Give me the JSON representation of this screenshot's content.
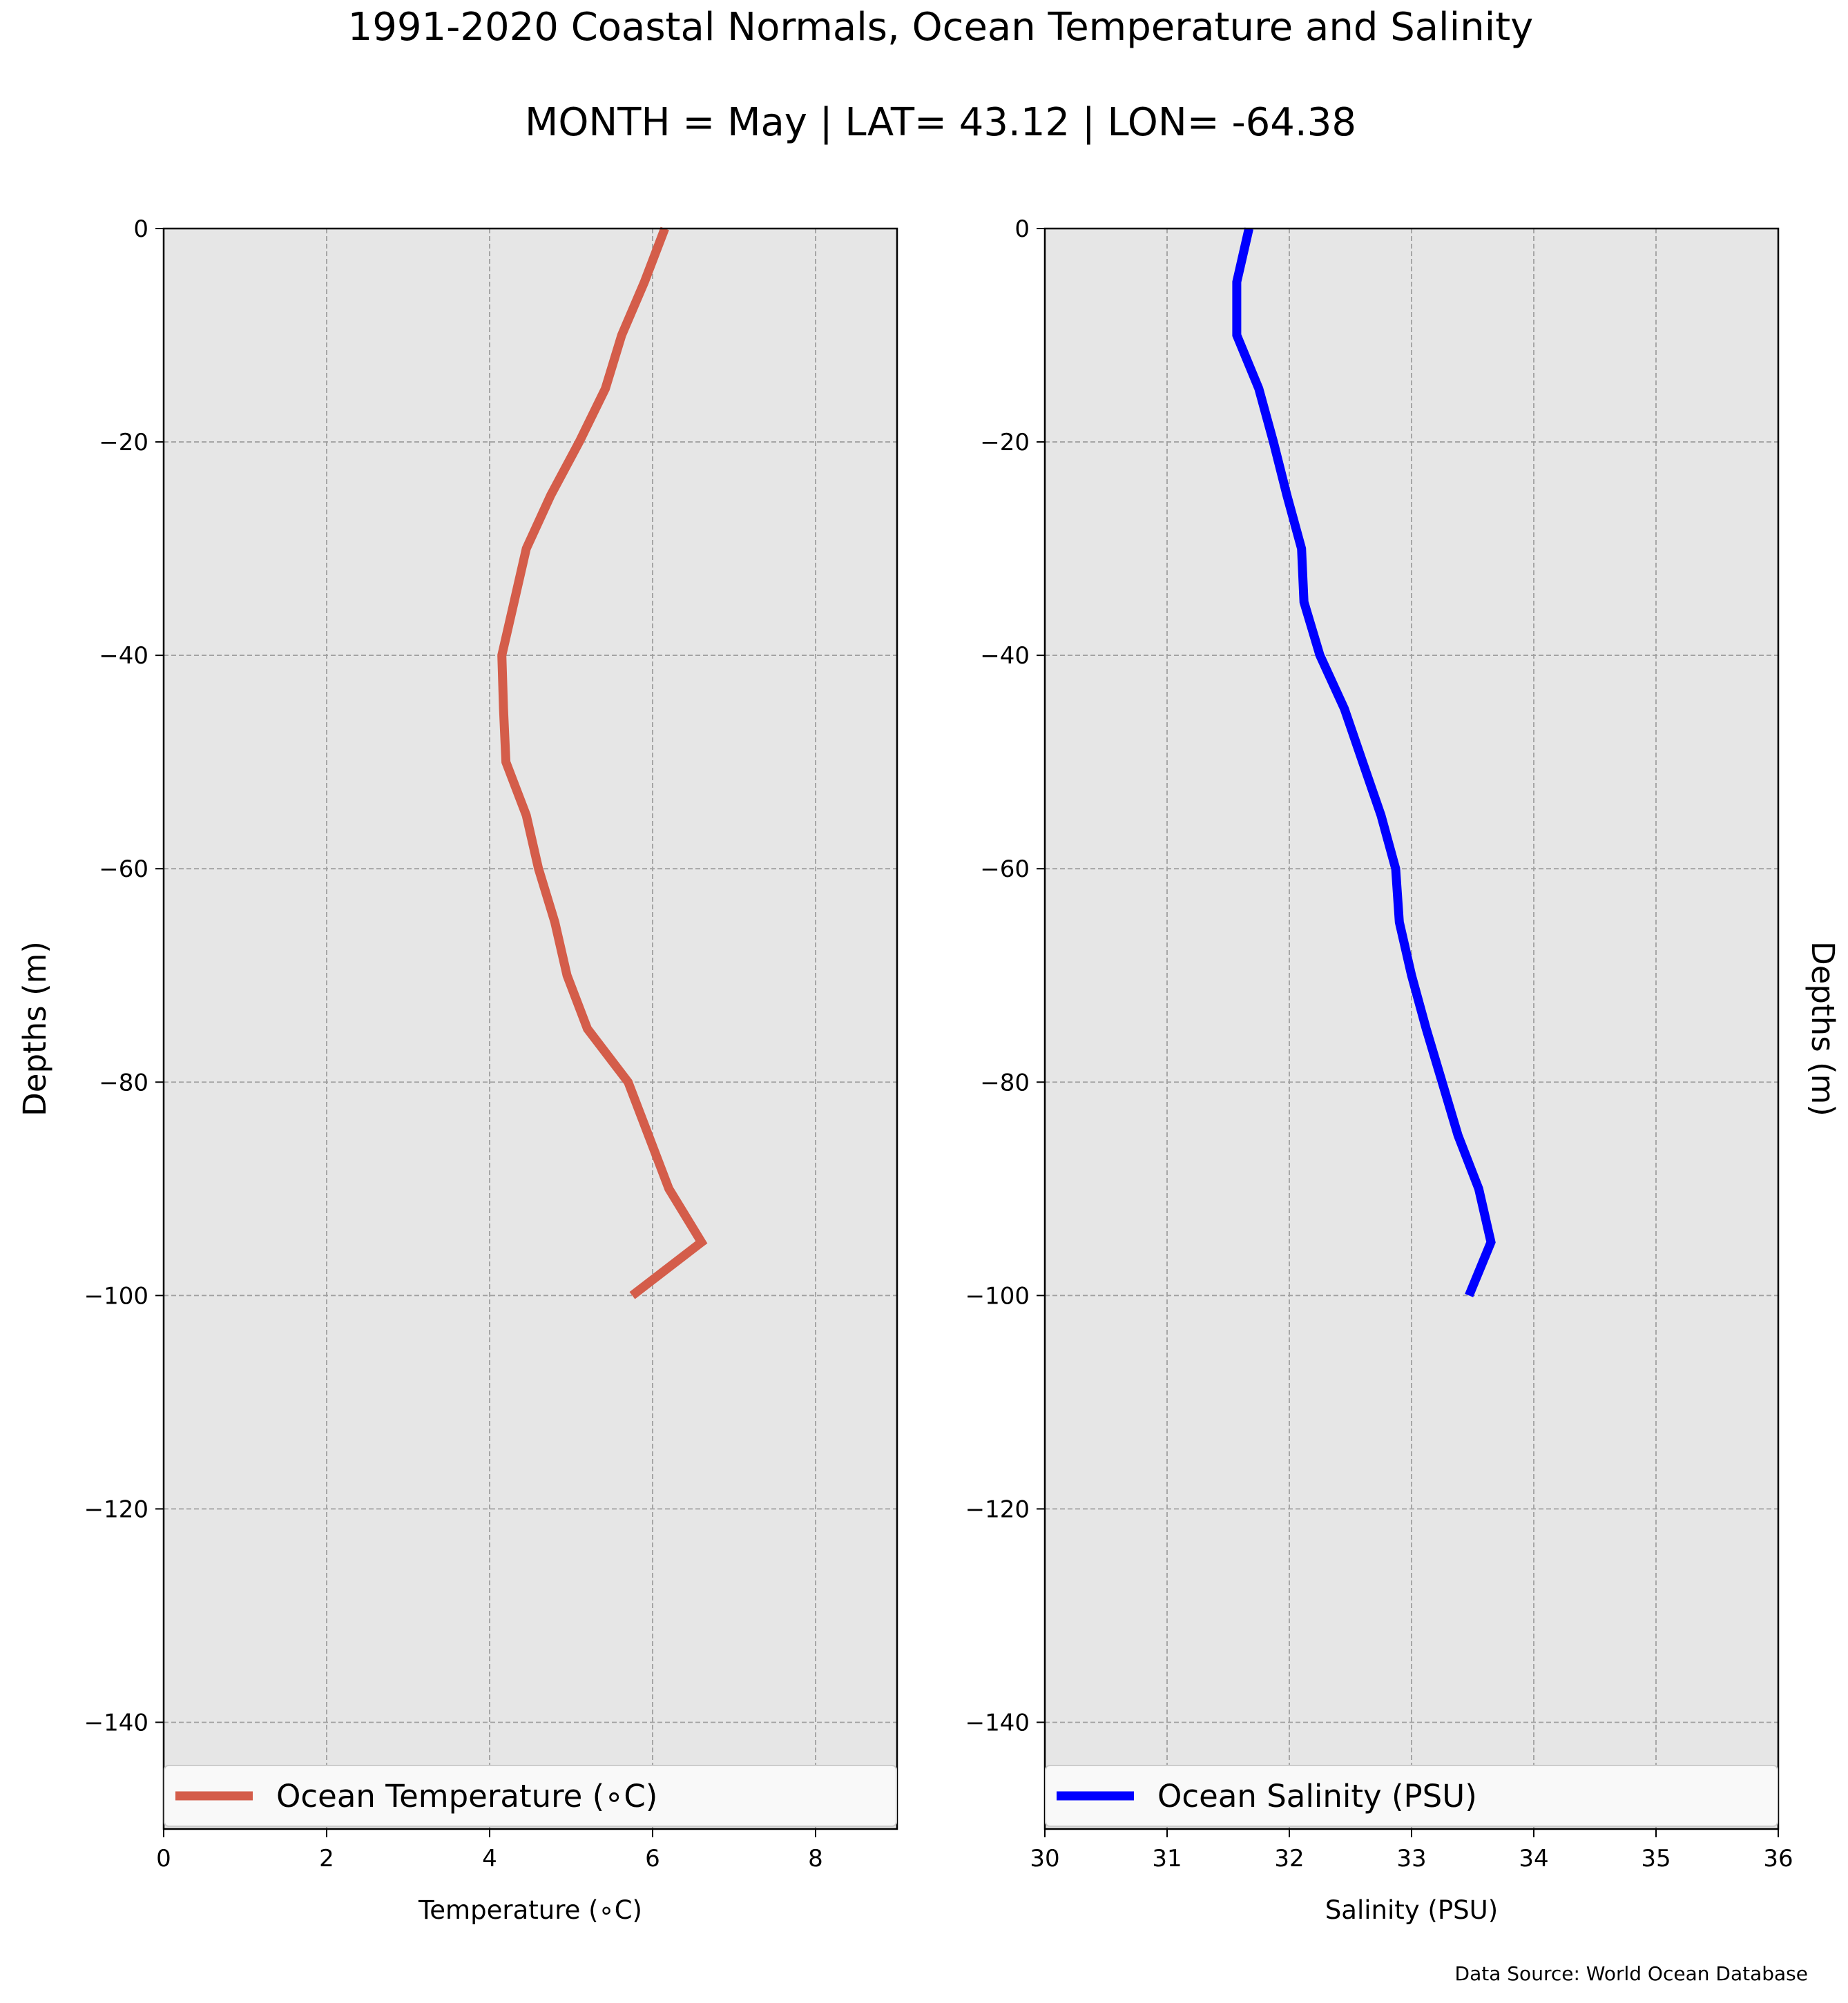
{
  "title": "1991-2020 Coastal Normals, Ocean Temperature and Salinity",
  "subtitle": "MONTH = May | LAT= 43.12 | LON= -64.38",
  "source": "Data Source: World Ocean Database",
  "colors": {
    "panel_background": "#e6e6e6",
    "grid": "#a0a0a0",
    "temperature_line": "#d45d4a",
    "salinity_line": "#0000ff"
  },
  "chart_data": [
    {
      "type": "line",
      "xlabel": "Temperature (∘C)",
      "ylabel": "Depths (m)",
      "ylabel_side": "left",
      "xlim": [
        0,
        9
      ],
      "ylim": [
        -150,
        0
      ],
      "xticks": [
        0,
        2,
        4,
        6,
        8
      ],
      "yticks": [
        0,
        -20,
        -40,
        -60,
        -80,
        -100,
        -120,
        -140
      ],
      "grid": true,
      "legend_position": "bottom",
      "series": [
        {
          "name": "Ocean Temperature (∘C)",
          "color": "#d45d4a",
          "x": [
            6.15,
            5.9,
            5.62,
            5.42,
            5.1,
            4.75,
            4.45,
            4.3,
            4.15,
            4.17,
            4.2,
            4.45,
            4.6,
            4.8,
            4.95,
            5.2,
            5.7,
            5.95,
            6.2,
            6.6,
            5.75
          ],
          "y": [
            0,
            -5,
            -10,
            -15,
            -20,
            -25,
            -30,
            -35,
            -40,
            -45,
            -50,
            -55,
            -60,
            -65,
            -70,
            -75,
            -80,
            -85,
            -90,
            -95,
            -100
          ]
        }
      ]
    },
    {
      "type": "line",
      "xlabel": "Salinity (PSU)",
      "ylabel": "Depths (m)",
      "ylabel_side": "right",
      "xlim": [
        30,
        36
      ],
      "ylim": [
        -150,
        0
      ],
      "xticks": [
        30,
        31,
        32,
        33,
        34,
        35,
        36
      ],
      "yticks": [
        0,
        -20,
        -40,
        -60,
        -80,
        -100,
        -120,
        -140
      ],
      "grid": true,
      "legend_position": "bottom",
      "series": [
        {
          "name": "Ocean Salinity (PSU)",
          "color": "#0000ff",
          "x": [
            31.67,
            31.57,
            31.57,
            31.75,
            31.87,
            31.98,
            32.1,
            32.12,
            32.25,
            32.45,
            32.6,
            32.75,
            32.87,
            32.9,
            33.0,
            33.12,
            33.25,
            33.38,
            33.55,
            33.65,
            33.47
          ],
          "y": [
            0,
            -5,
            -10,
            -15,
            -20,
            -25,
            -30,
            -35,
            -40,
            -45,
            -50,
            -55,
            -60,
            -65,
            -70,
            -75,
            -80,
            -85,
            -90,
            -95,
            -100
          ]
        }
      ]
    }
  ]
}
